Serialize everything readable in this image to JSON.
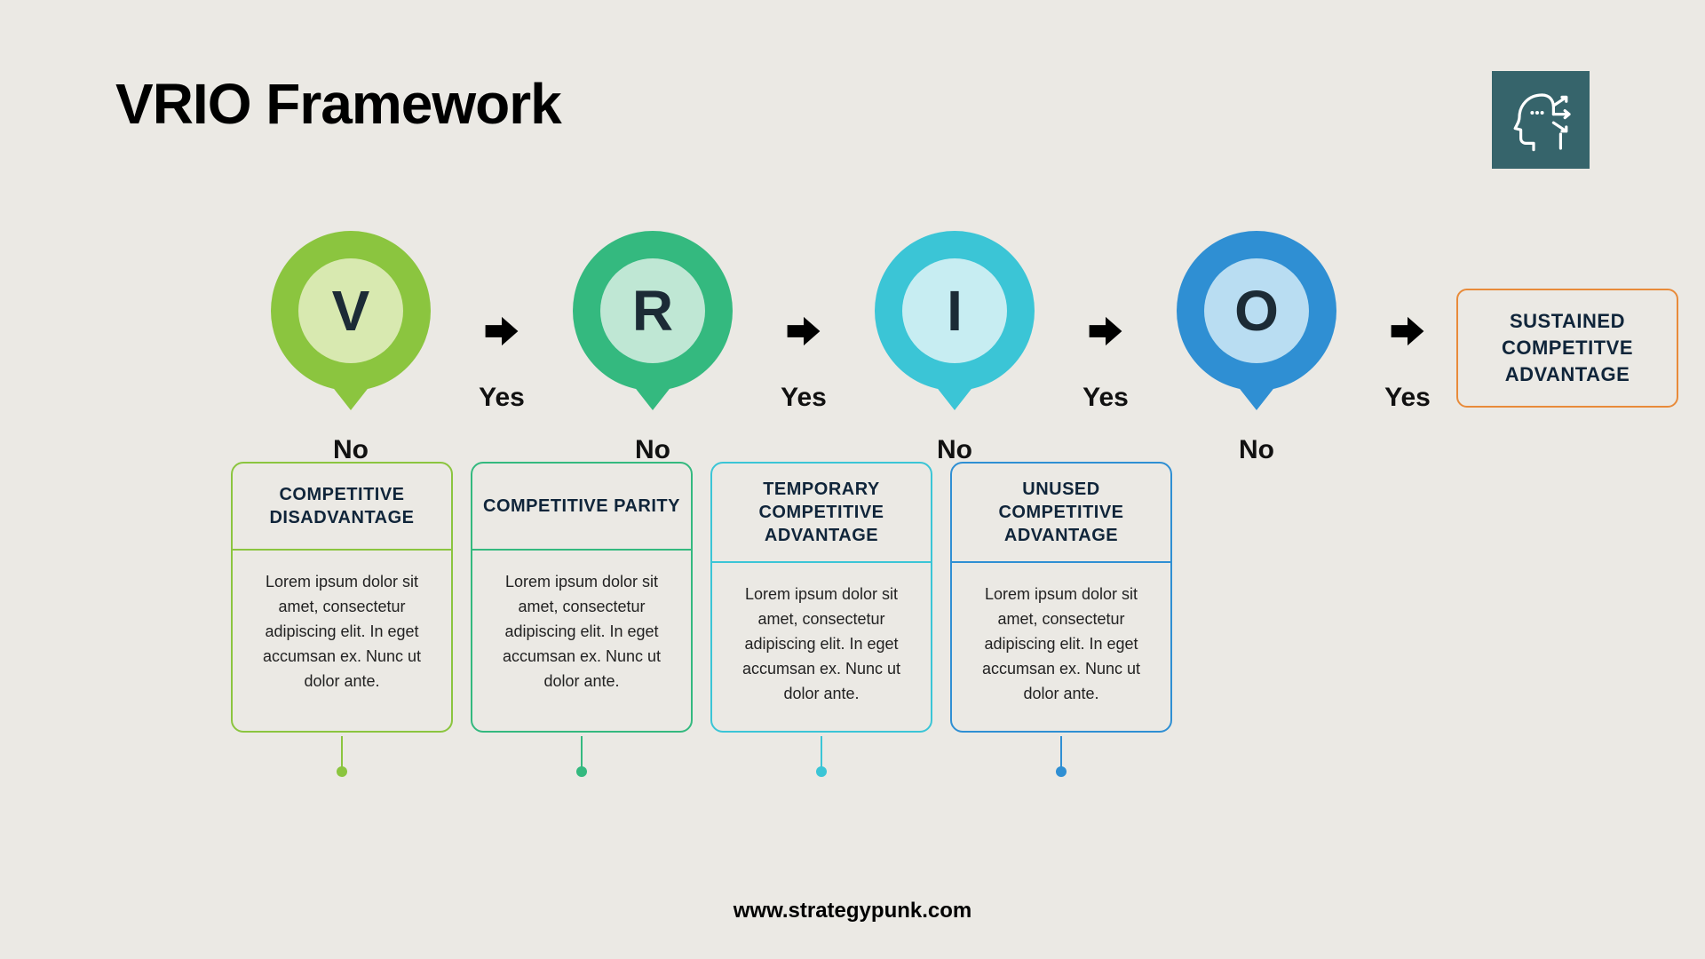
{
  "title": "VRIO Framework",
  "footer": "www.strategypunk.com",
  "background_color": "#ebe9e4",
  "corner_icon": {
    "bg": "#36646b",
    "stroke": "#ffffff"
  },
  "arrow_color": "#000000",
  "yes_label": "Yes",
  "no_label": "No",
  "nodes": [
    {
      "letter": "V",
      "outer_color": "#8bc53f",
      "inner_color": "#d8e9b0",
      "card_title": "COMPETITIVE DISADVANTAGE",
      "card_body": "Lorem ipsum dolor sit amet, consectetur adipiscing elit. In eget accumsan ex. Nunc ut dolor ante.",
      "border_color": "#8bc53f"
    },
    {
      "letter": "R",
      "outer_color": "#34b97f",
      "inner_color": "#bfe7d4",
      "card_title": "COMPETITIVE PARITY",
      "card_body": "Lorem ipsum dolor sit amet, consectetur adipiscing elit. In eget accumsan ex. Nunc ut dolor ante.",
      "border_color": "#34b97f"
    },
    {
      "letter": "I",
      "outer_color": "#3bc5d6",
      "inner_color": "#c7edf2",
      "card_title": "TEMPORARY COMPETITIVE ADVANTAGE",
      "card_body": "Lorem ipsum dolor sit amet, consectetur adipiscing elit. In eget accumsan ex. Nunc ut dolor ante.",
      "border_color": "#3bc5d6"
    },
    {
      "letter": "O",
      "outer_color": "#2f8fd3",
      "inner_color": "#b9ddf2",
      "card_title": "UNUSED COMPETITIVE ADVANTAGE",
      "card_body": "Lorem ipsum dolor sit amet, consectetur adipiscing elit. In eget accumsan ex. Nunc ut dolor ante.",
      "border_color": "#2f8fd3"
    }
  ],
  "final": {
    "label": "SUSTAINED COMPETITVE ADVANTAGE",
    "border_color": "#e88b3a",
    "text_color": "#10253a"
  }
}
